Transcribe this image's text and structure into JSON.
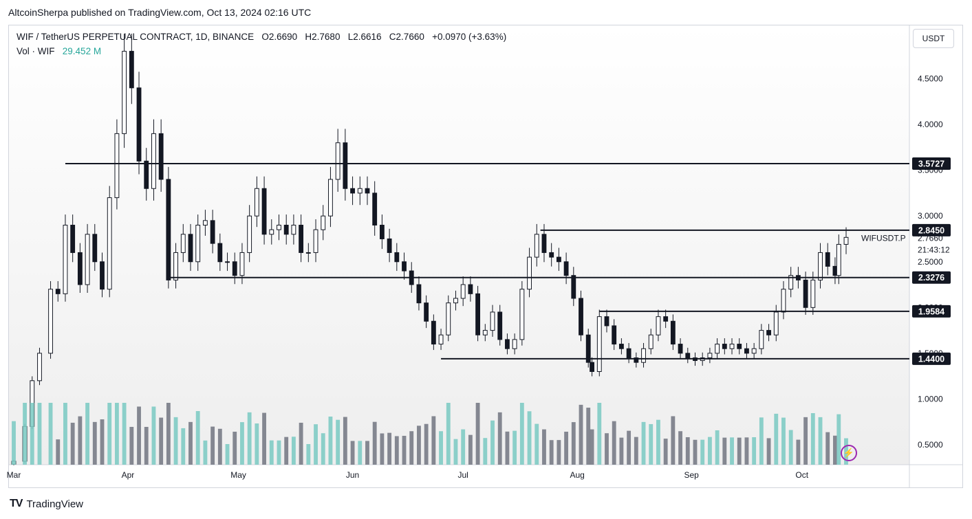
{
  "caption": "AltcoinSherpa published on TradingView.com, Oct 13, 2024 02:16 UTC",
  "legend": {
    "symbol_line": "WIF / TetherUS PERPETUAL CONTRACT, 1D, BINANCE",
    "o": "O2.6690",
    "h": "H2.7680",
    "l": "L2.6616",
    "c": "C2.7660",
    "change": "+0.0970 (+3.63%)",
    "vol_label": "Vol · WIF",
    "vol_value": "29.452 M"
  },
  "currency": "USDT",
  "footer": {
    "brand": "TradingView",
    "logo_icon": "tv-logo-icon"
  },
  "colors": {
    "up_volume": "#80cbc4",
    "down_volume": "#787b86",
    "candle": "#131722",
    "accent": "#9c27b0"
  },
  "chart_data": {
    "type": "candlestick",
    "symbol": "WIFUSDT.P",
    "current_price": "2.7660",
    "countdown": "21:43:12",
    "y_ticks": [
      "0.5000",
      "1.0000",
      "1.5000",
      "2.0000",
      "2.5000",
      "3.0000",
      "3.5000",
      "4.0000",
      "4.5000"
    ],
    "ylim": [
      0.25,
      4.99
    ],
    "x_ticks": [
      "Mar",
      "Apr",
      "May",
      "Jun",
      "Jul",
      "Aug",
      "Sep",
      "Oct"
    ],
    "levels": [
      {
        "label": "3.5727",
        "value": 3.5727,
        "from": "2024-03-15"
      },
      {
        "label": "2.8450",
        "value": 2.845,
        "from": "2024-07-22"
      },
      {
        "label": "2.3276",
        "value": 2.3276,
        "from": "2024-04-12"
      },
      {
        "label": "1.9584",
        "value": 1.9584,
        "from": "2024-08-07"
      },
      {
        "label": "1.4400",
        "value": 1.44,
        "from": "2024-06-25"
      }
    ],
    "closes": [
      {
        "date": "2024-03-01",
        "close": 0.32
      },
      {
        "date": "2024-03-04",
        "close": 0.7
      },
      {
        "date": "2024-03-06",
        "close": 1.2
      },
      {
        "date": "2024-03-08",
        "close": 1.5
      },
      {
        "date": "2024-03-11",
        "close": 2.2
      },
      {
        "date": "2024-03-13",
        "close": 2.15
      },
      {
        "date": "2024-03-15",
        "close": 2.9
      },
      {
        "date": "2024-03-17",
        "close": 2.6
      },
      {
        "date": "2024-03-19",
        "close": 2.25
      },
      {
        "date": "2024-03-21",
        "close": 2.8
      },
      {
        "date": "2024-03-23",
        "close": 2.5
      },
      {
        "date": "2024-03-25",
        "close": 2.2
      },
      {
        "date": "2024-03-27",
        "close": 3.2
      },
      {
        "date": "2024-03-29",
        "close": 3.9
      },
      {
        "date": "2024-03-31",
        "close": 4.8
      },
      {
        "date": "2024-04-02",
        "close": 4.4
      },
      {
        "date": "2024-04-04",
        "close": 3.6
      },
      {
        "date": "2024-04-06",
        "close": 3.3
      },
      {
        "date": "2024-04-08",
        "close": 3.9
      },
      {
        "date": "2024-04-10",
        "close": 3.4
      },
      {
        "date": "2024-04-12",
        "close": 2.3
      },
      {
        "date": "2024-04-14",
        "close": 2.6
      },
      {
        "date": "2024-04-16",
        "close": 2.8
      },
      {
        "date": "2024-04-18",
        "close": 2.5
      },
      {
        "date": "2024-04-20",
        "close": 2.9
      },
      {
        "date": "2024-04-22",
        "close": 2.95
      },
      {
        "date": "2024-04-24",
        "close": 2.7
      },
      {
        "date": "2024-04-26",
        "close": 2.5
      },
      {
        "date": "2024-04-28",
        "close": 2.5
      },
      {
        "date": "2024-04-30",
        "close": 2.35
      },
      {
        "date": "2024-05-02",
        "close": 2.6
      },
      {
        "date": "2024-05-04",
        "close": 3.0
      },
      {
        "date": "2024-05-06",
        "close": 3.3
      },
      {
        "date": "2024-05-08",
        "close": 2.8
      },
      {
        "date": "2024-05-10",
        "close": 2.85
      },
      {
        "date": "2024-05-12",
        "close": 2.9
      },
      {
        "date": "2024-05-14",
        "close": 2.8
      },
      {
        "date": "2024-05-16",
        "close": 2.9
      },
      {
        "date": "2024-05-18",
        "close": 2.6
      },
      {
        "date": "2024-05-20",
        "close": 2.6
      },
      {
        "date": "2024-05-22",
        "close": 2.85
      },
      {
        "date": "2024-05-24",
        "close": 3.0
      },
      {
        "date": "2024-05-26",
        "close": 3.4
      },
      {
        "date": "2024-05-28",
        "close": 3.8
      },
      {
        "date": "2024-05-30",
        "close": 3.3
      },
      {
        "date": "2024-06-01",
        "close": 3.25
      },
      {
        "date": "2024-06-03",
        "close": 3.3
      },
      {
        "date": "2024-06-05",
        "close": 3.25
      },
      {
        "date": "2024-06-07",
        "close": 2.9
      },
      {
        "date": "2024-06-09",
        "close": 2.75
      },
      {
        "date": "2024-06-11",
        "close": 2.6
      },
      {
        "date": "2024-06-13",
        "close": 2.5
      },
      {
        "date": "2024-06-15",
        "close": 2.4
      },
      {
        "date": "2024-06-17",
        "close": 2.25
      },
      {
        "date": "2024-06-19",
        "close": 2.05
      },
      {
        "date": "2024-06-21",
        "close": 1.85
      },
      {
        "date": "2024-06-23",
        "close": 1.6
      },
      {
        "date": "2024-06-25",
        "close": 1.7
      },
      {
        "date": "2024-06-27",
        "close": 2.05
      },
      {
        "date": "2024-06-29",
        "close": 2.1
      },
      {
        "date": "2024-07-01",
        "close": 2.25
      },
      {
        "date": "2024-07-03",
        "close": 2.15
      },
      {
        "date": "2024-07-05",
        "close": 1.7
      },
      {
        "date": "2024-07-07",
        "close": 1.75
      },
      {
        "date": "2024-07-09",
        "close": 1.95
      },
      {
        "date": "2024-07-11",
        "close": 1.65
      },
      {
        "date": "2024-07-13",
        "close": 1.55
      },
      {
        "date": "2024-07-15",
        "close": 1.65
      },
      {
        "date": "2024-07-17",
        "close": 2.2
      },
      {
        "date": "2024-07-19",
        "close": 2.55
      },
      {
        "date": "2024-07-21",
        "close": 2.8
      },
      {
        "date": "2024-07-23",
        "close": 2.6
      },
      {
        "date": "2024-07-25",
        "close": 2.55
      },
      {
        "date": "2024-07-27",
        "close": 2.5
      },
      {
        "date": "2024-07-29",
        "close": 2.35
      },
      {
        "date": "2024-07-31",
        "close": 2.1
      },
      {
        "date": "2024-08-02",
        "close": 1.7
      },
      {
        "date": "2024-08-04",
        "close": 1.4
      },
      {
        "date": "2024-08-05",
        "close": 1.3
      },
      {
        "date": "2024-08-07",
        "close": 1.9
      },
      {
        "date": "2024-08-09",
        "close": 1.8
      },
      {
        "date": "2024-08-11",
        "close": 1.6
      },
      {
        "date": "2024-08-13",
        "close": 1.55
      },
      {
        "date": "2024-08-15",
        "close": 1.45
      },
      {
        "date": "2024-08-17",
        "close": 1.4
      },
      {
        "date": "2024-08-19",
        "close": 1.55
      },
      {
        "date": "2024-08-21",
        "close": 1.7
      },
      {
        "date": "2024-08-23",
        "close": 1.9
      },
      {
        "date": "2024-08-25",
        "close": 1.85
      },
      {
        "date": "2024-08-27",
        "close": 1.6
      },
      {
        "date": "2024-08-29",
        "close": 1.5
      },
      {
        "date": "2024-08-31",
        "close": 1.45
      },
      {
        "date": "2024-09-02",
        "close": 1.42
      },
      {
        "date": "2024-09-04",
        "close": 1.45
      },
      {
        "date": "2024-09-06",
        "close": 1.5
      },
      {
        "date": "2024-09-08",
        "close": 1.6
      },
      {
        "date": "2024-09-10",
        "close": 1.55
      },
      {
        "date": "2024-09-12",
        "close": 1.6
      },
      {
        "date": "2024-09-14",
        "close": 1.55
      },
      {
        "date": "2024-09-16",
        "close": 1.5
      },
      {
        "date": "2024-09-18",
        "close": 1.55
      },
      {
        "date": "2024-09-20",
        "close": 1.75
      },
      {
        "date": "2024-09-22",
        "close": 1.7
      },
      {
        "date": "2024-09-24",
        "close": 1.95
      },
      {
        "date": "2024-09-26",
        "close": 2.2
      },
      {
        "date": "2024-09-28",
        "close": 2.35
      },
      {
        "date": "2024-09-30",
        "close": 2.3
      },
      {
        "date": "2024-10-02",
        "close": 2.0
      },
      {
        "date": "2024-10-04",
        "close": 2.3
      },
      {
        "date": "2024-10-06",
        "close": 2.6
      },
      {
        "date": "2024-10-08",
        "close": 2.45
      },
      {
        "date": "2024-10-10",
        "close": 2.35
      },
      {
        "date": "2024-10-11",
        "close": 2.69
      },
      {
        "date": "2024-10-13",
        "close": 2.766
      }
    ]
  }
}
